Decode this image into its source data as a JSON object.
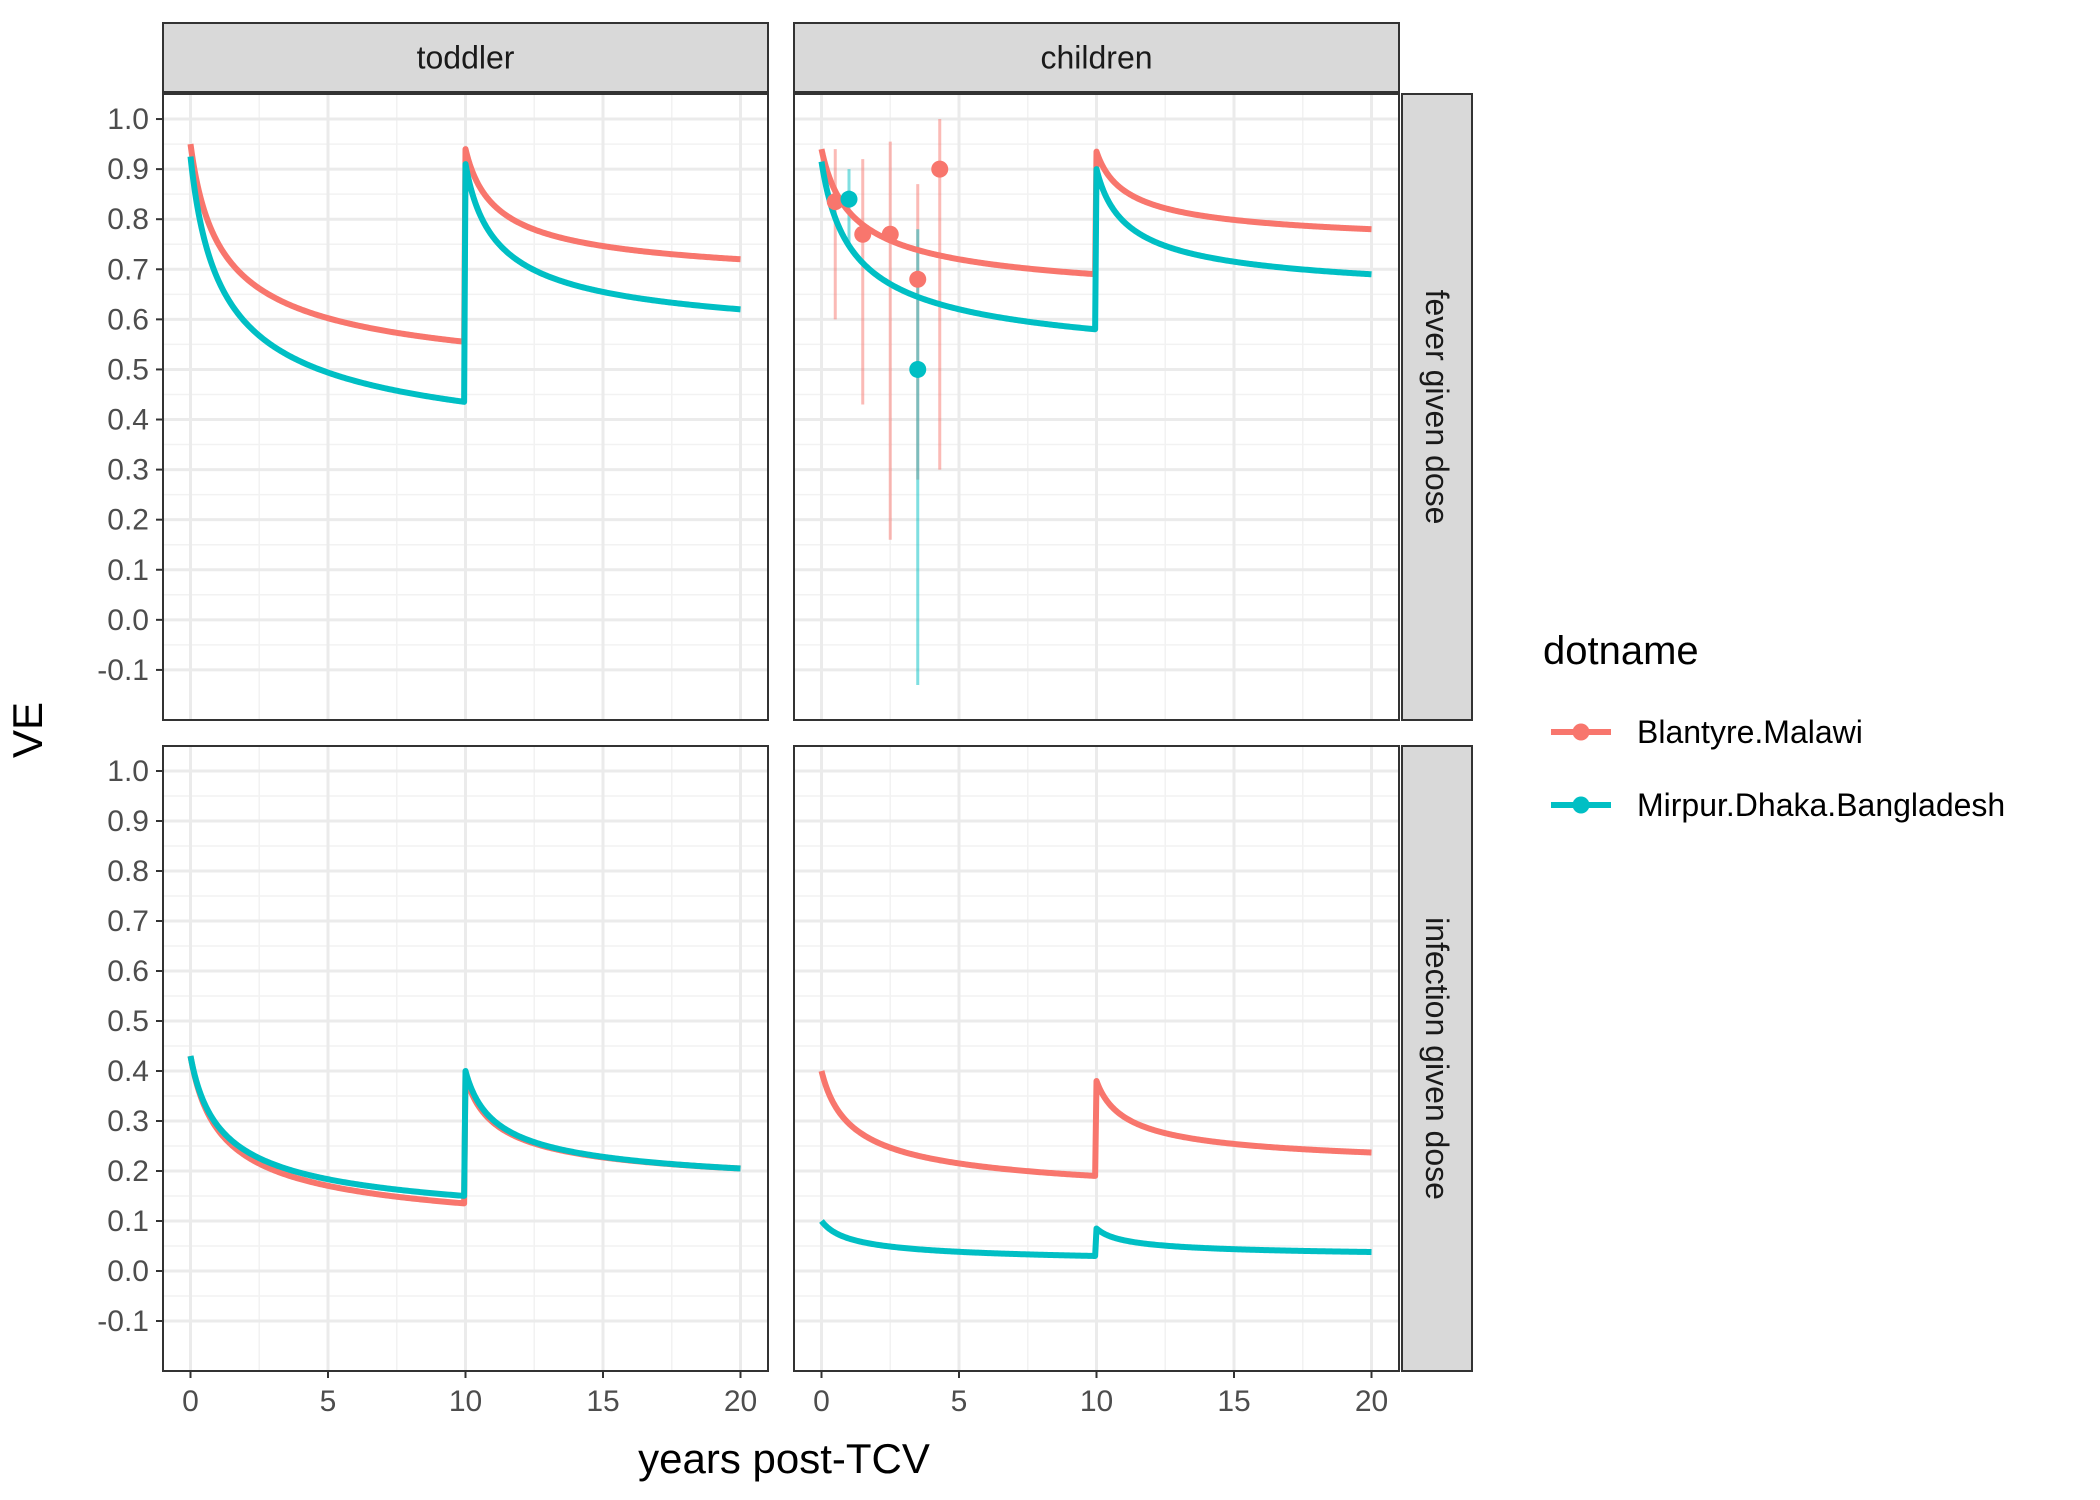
{
  "chart_data": {
    "type": "line",
    "facet_columns": [
      "toddler",
      "children"
    ],
    "facet_rows": [
      "fever given dose",
      "infection given dose"
    ],
    "xlabel": "years post-TCV",
    "ylabel": "VE",
    "xlim": [
      -1,
      21
    ],
    "ylim": [
      -0.2,
      1.05
    ],
    "x_ticks": [
      0,
      5,
      10,
      15,
      20
    ],
    "y_ticks": [
      -0.1,
      0.0,
      0.1,
      0.2,
      0.3,
      0.4,
      0.5,
      0.6,
      0.7,
      0.8,
      0.9,
      1.0
    ],
    "y_tick_labels": [
      "-0.1",
      "0.0",
      "0.1",
      "0.2",
      "0.3",
      "0.4",
      "0.5",
      "0.6",
      "0.7",
      "0.8",
      "0.9",
      "1.0"
    ],
    "grid": true,
    "legend": {
      "title": "dotname",
      "position": "right",
      "entries": [
        {
          "label": "Blantyre.Malawi",
          "color": "#F8766D"
        },
        {
          "label": "Mirpur.Dhaka.Bangladesh",
          "color": "#00BFC4"
        }
      ]
    },
    "panels": [
      {
        "column": "toddler",
        "row": "fever given dose",
        "series": [
          {
            "name": "Blantyre.Malawi",
            "color": "#F8766D",
            "start": 0.95,
            "end_pre": 0.555,
            "peak": 0.94,
            "end": 0.72
          },
          {
            "name": "Mirpur.Dhaka.Bangladesh",
            "color": "#00BFC4",
            "start": 0.925,
            "end_pre": 0.435,
            "peak": 0.91,
            "end": 0.62
          }
        ],
        "points": []
      },
      {
        "column": "children",
        "row": "fever given dose",
        "series": [
          {
            "name": "Blantyre.Malawi",
            "color": "#F8766D",
            "start": 0.94,
            "end_pre": 0.69,
            "peak": 0.935,
            "end": 0.78
          },
          {
            "name": "Mirpur.Dhaka.Bangladesh",
            "color": "#00BFC4",
            "start": 0.915,
            "end_pre": 0.58,
            "peak": 0.9,
            "end": 0.69
          }
        ],
        "points": [
          {
            "series": "Blantyre.Malawi",
            "color": "#F8766D",
            "x": 0.5,
            "y": 0.835,
            "lo": 0.6,
            "hi": 0.94
          },
          {
            "series": "Blantyre.Malawi",
            "color": "#F8766D",
            "x": 1.5,
            "y": 0.77,
            "lo": 0.43,
            "hi": 0.92
          },
          {
            "series": "Blantyre.Malawi",
            "color": "#F8766D",
            "x": 2.5,
            "y": 0.77,
            "lo": 0.16,
            "hi": 0.955
          },
          {
            "series": "Blantyre.Malawi",
            "color": "#F8766D",
            "x": 3.5,
            "y": 0.68,
            "lo": 0.28,
            "hi": 0.87
          },
          {
            "series": "Blantyre.Malawi",
            "color": "#F8766D",
            "x": 4.3,
            "y": 0.9,
            "lo": 0.3,
            "hi": 1.0
          },
          {
            "series": "Mirpur.Dhaka.Bangladesh",
            "color": "#00BFC4",
            "x": 1.0,
            "y": 0.84,
            "lo": 0.74,
            "hi": 0.9
          },
          {
            "series": "Mirpur.Dhaka.Bangladesh",
            "color": "#00BFC4",
            "x": 3.5,
            "y": 0.5,
            "lo": -0.13,
            "hi": 0.78
          }
        ]
      },
      {
        "column": "toddler",
        "row": "infection given dose",
        "series": [
          {
            "name": "Blantyre.Malawi",
            "color": "#F8766D",
            "start": 0.43,
            "end_pre": 0.135,
            "peak": 0.39,
            "end": 0.205
          },
          {
            "name": "Mirpur.Dhaka.Bangladesh",
            "color": "#00BFC4",
            "start": 0.43,
            "end_pre": 0.15,
            "peak": 0.4,
            "end": 0.205
          }
        ],
        "points": []
      },
      {
        "column": "children",
        "row": "infection given dose",
        "series": [
          {
            "name": "Blantyre.Malawi",
            "color": "#F8766D",
            "start": 0.4,
            "end_pre": 0.19,
            "peak": 0.38,
            "end": 0.237
          },
          {
            "name": "Mirpur.Dhaka.Bangladesh",
            "color": "#00BFC4",
            "start": 0.1,
            "end_pre": 0.03,
            "peak": 0.085,
            "end": 0.038
          }
        ],
        "points": []
      }
    ]
  }
}
